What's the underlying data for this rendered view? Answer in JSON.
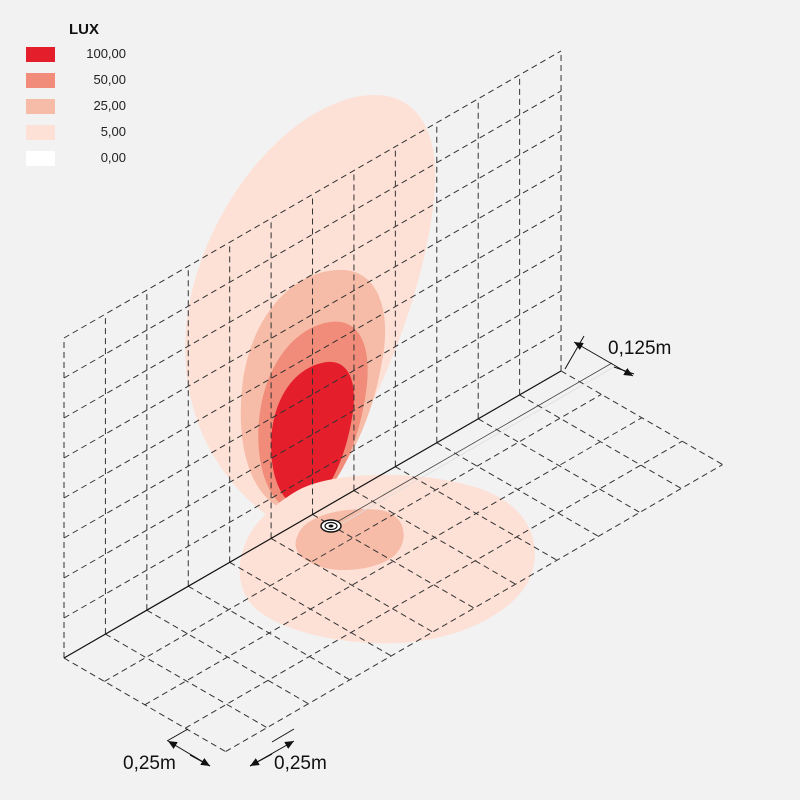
{
  "legend": {
    "title": "LUX",
    "levels": [
      {
        "value": "100,00",
        "color": "#e41e2b"
      },
      {
        "value": "50,00",
        "color": "#f08c79"
      },
      {
        "value": "25,00",
        "color": "#f6bca8"
      },
      {
        "value": "5,00",
        "color": "#fde1d6"
      },
      {
        "value": "0,00",
        "color": "#ffffff"
      }
    ]
  },
  "dimensions": {
    "fixture_offset": "0,125m",
    "grid_spacing_x": "0,25m",
    "grid_spacing_y": "0,25m"
  }
}
